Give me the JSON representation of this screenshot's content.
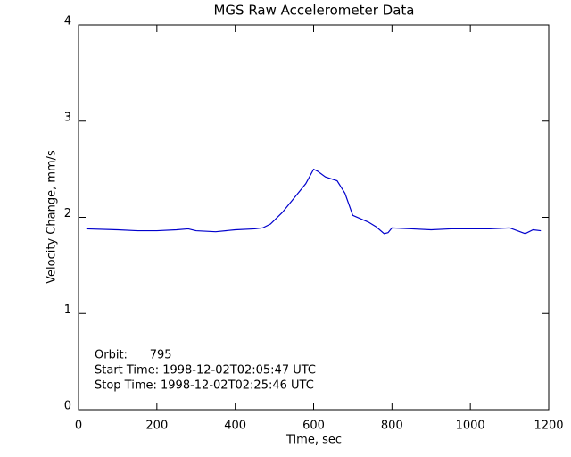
{
  "chart_data": {
    "type": "line",
    "title": "MGS Raw Accelerometer Data",
    "x_label": "Time, sec",
    "y_label": "Velocity Change, mm/s",
    "annotations": [
      "Orbit:      795",
      "Start Time: 1998-12-02T02:05:47 UTC",
      "Stop Time: 1998-12-02T02:25:46 UTC"
    ],
    "x": [
      20,
      100,
      150,
      200,
      250,
      280,
      300,
      350,
      400,
      450,
      470,
      490,
      520,
      550,
      580,
      600,
      610,
      630,
      660,
      680,
      700,
      740,
      760,
      780,
      790,
      800,
      850,
      900,
      950,
      1000,
      1050,
      1100,
      1120,
      1140,
      1160,
      1180
    ],
    "series": [
      {
        "color": "#0000cc",
        "values": [
          1.88,
          1.87,
          1.86,
          1.86,
          1.87,
          1.88,
          1.86,
          1.85,
          1.87,
          1.88,
          1.89,
          1.93,
          2.05,
          2.2,
          2.35,
          2.5,
          2.48,
          2.42,
          2.38,
          2.25,
          2.02,
          1.95,
          1.9,
          1.83,
          1.84,
          1.89,
          1.88,
          1.87,
          1.88,
          1.88,
          1.88,
          1.89,
          1.86,
          1.83,
          1.87,
          1.86
        ]
      }
    ],
    "xlim": [
      0,
      1200
    ],
    "xticks": [
      0,
      200,
      400,
      600,
      800,
      1000,
      1200
    ],
    "ylim": [
      0,
      4
    ],
    "yticks": [
      0,
      1,
      2,
      3,
      4
    ]
  }
}
